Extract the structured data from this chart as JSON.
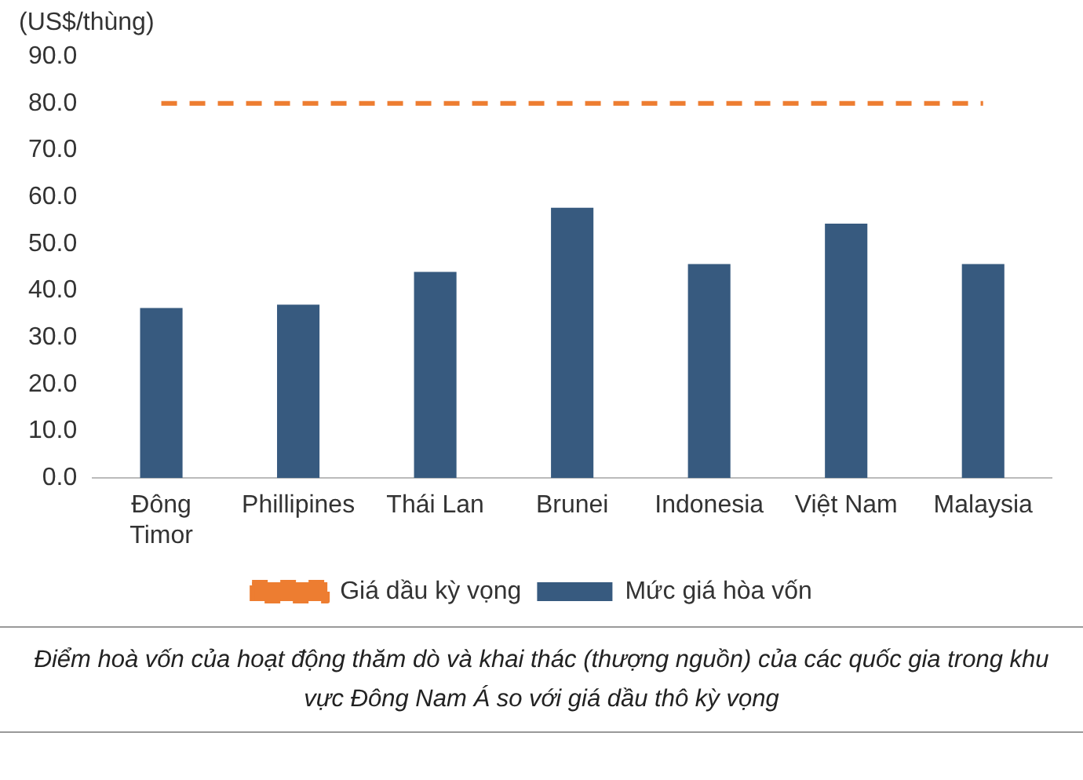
{
  "chart_data": {
    "type": "bar",
    "ylabel": "(US$/thùng)",
    "categories": [
      "Đông Timor",
      "Phillipines",
      "Thái Lan",
      "Brunei",
      "Indonesia",
      "Việt Nam",
      "Malaysia"
    ],
    "series": [
      {
        "name": "Mức giá hòa vốn",
        "color": "#375a7f",
        "values": [
          36.3,
          37.0,
          44.0,
          57.7,
          45.7,
          54.3,
          45.7
        ]
      },
      {
        "name": "Giá dầu kỳ vọng",
        "type": "line",
        "line_style": "dashed",
        "marker": "none",
        "color": "#ed7d31",
        "values": [
          80,
          80,
          80,
          80,
          80,
          80,
          80
        ]
      }
    ],
    "ylim": [
      0,
      90
    ],
    "yticks": [
      {
        "value": 0,
        "label": "0.0"
      },
      {
        "value": 10,
        "label": "10.0"
      },
      {
        "value": 20,
        "label": "20.0"
      },
      {
        "value": 30,
        "label": "30.0"
      },
      {
        "value": 40,
        "label": "40.0"
      },
      {
        "value": 50,
        "label": "50.0"
      },
      {
        "value": 60,
        "label": "60.0"
      },
      {
        "value": 70,
        "label": "70.0"
      },
      {
        "value": 80,
        "label": "80.0"
      },
      {
        "value": 90,
        "label": "90.0"
      }
    ],
    "grid": false,
    "legend": "bottom",
    "annotations": [
      "Điểm hoà vốn của hoạt động thăm dò và khai thác (thượng nguồn) của các quốc gia trong khu vực Đông Nam Á so với giá dầu thô kỳ vọng"
    ]
  }
}
